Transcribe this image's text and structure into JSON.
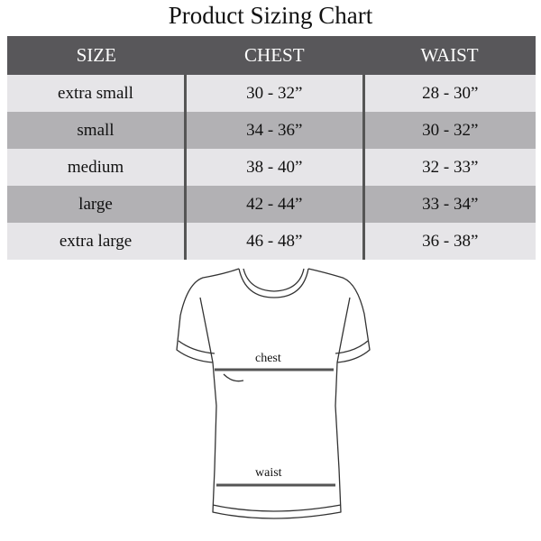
{
  "title": "Product Sizing Chart",
  "table": {
    "headers": [
      "SIZE",
      "CHEST",
      "WAIST"
    ],
    "rows": [
      [
        "extra small",
        "30 - 32”",
        "28 - 30”"
      ],
      [
        "small",
        "34 - 36”",
        "30 - 32”"
      ],
      [
        "medium",
        "38 - 40”",
        "32 - 33”"
      ],
      [
        "large",
        "42 - 44”",
        "33 - 34”"
      ],
      [
        "extra large",
        "46 - 48”",
        "36 - 38”"
      ]
    ]
  },
  "diagram": {
    "chest_label": "chest",
    "waist_label": "waist"
  },
  "colors": {
    "header": "#58575a",
    "row_light": "#e6e5e8",
    "row_dark": "#b2b1b4"
  }
}
